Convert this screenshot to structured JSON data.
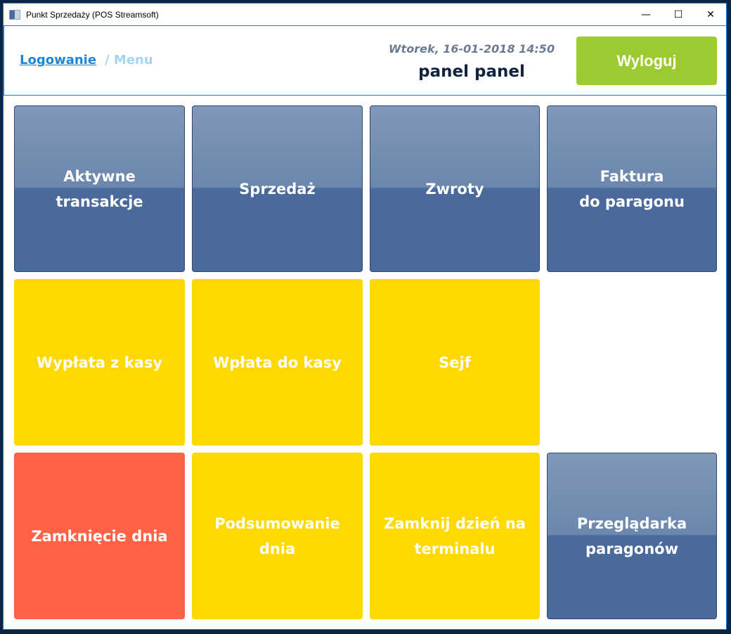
{
  "window": {
    "title": "Punkt Sprzedaży (POS Streamsoft)",
    "controls": {
      "minimize": "—",
      "maximize": "☐",
      "close": "✕"
    }
  },
  "header": {
    "breadcrumb": {
      "link": "Logowanie",
      "current": "/ Menu"
    },
    "datetime": "Wtorek, 16-01-2018 14:50",
    "user": "panel panel",
    "logout_label": "Wyloguj"
  },
  "colors": {
    "blue": "#4a6a9b",
    "yellow": "#ffd800",
    "red": "#ff6244",
    "green": "#9bcb30"
  },
  "tiles": [
    {
      "label": "Aktywne\ntransakcje",
      "color": "blue"
    },
    {
      "label": "Sprzedaż",
      "color": "blue"
    },
    {
      "label": "Zwroty",
      "color": "blue"
    },
    {
      "label": "Faktura\ndo paragonu",
      "color": "blue"
    },
    {
      "label": "Wypłata z kasy",
      "color": "yellow"
    },
    {
      "label": "Wpłata do kasy",
      "color": "yellow"
    },
    {
      "label": "Sejf",
      "color": "yellow"
    },
    {
      "label": "Zamknięcie dnia",
      "color": "red"
    },
    {
      "label": "Podsumowanie\ndnia",
      "color": "yellow"
    },
    {
      "label": "Zamknij dzień na\nterminalu",
      "color": "yellow"
    },
    {
      "label": "Przeglądarka\nparagonów",
      "color": "blue"
    }
  ]
}
